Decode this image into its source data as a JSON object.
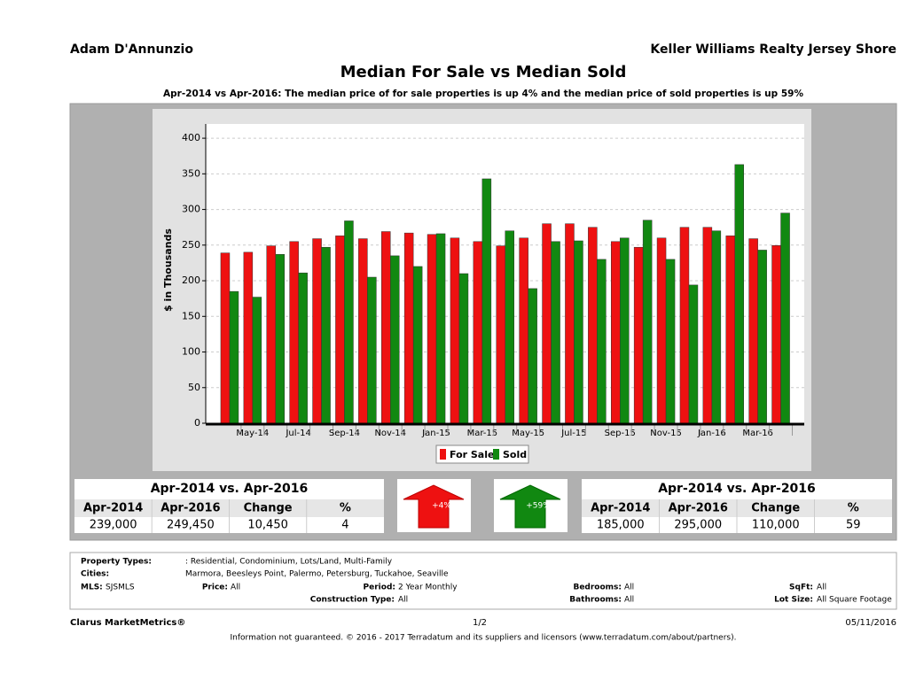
{
  "header": {
    "agent": "Adam D'Annunzio",
    "company": "Keller Williams Realty Jersey Shore"
  },
  "chart_data": {
    "type": "bar",
    "title": "Median For Sale vs Median Sold",
    "subtitle": "Apr-2014 vs Apr-2016: The median price of for sale properties is up 4% and the median price of sold properties is up 59%",
    "y_label": "$ in Thousands",
    "categories": [
      null,
      "May-14",
      null,
      "Jul-14",
      null,
      "Sep-14",
      null,
      "Nov-14",
      null,
      "Jan-15",
      null,
      "Mar-15",
      null,
      "May-15",
      null,
      "Jul-15",
      null,
      "Sep-15",
      null,
      "Nov-15",
      null,
      "Jan-16",
      null,
      "Mar-16",
      null
    ],
    "series": [
      {
        "name": "For Sale",
        "color": "#ee1111",
        "values": [
          239,
          240,
          249,
          255,
          259,
          263,
          259,
          269,
          267,
          265,
          260,
          255,
          249,
          260,
          280,
          280,
          275,
          255,
          247,
          260,
          275,
          275,
          263,
          259,
          249.45
        ]
      },
      {
        "name": "Sold",
        "color": "#118811",
        "values": [
          185,
          177,
          237,
          211,
          247,
          284,
          205,
          235,
          220,
          266,
          210,
          343,
          270,
          189,
          255,
          256,
          230,
          260,
          285,
          230,
          194,
          270,
          363,
          243,
          295
        ]
      }
    ],
    "ylim": [
      0,
      420
    ],
    "yticks": [
      0,
      50,
      100,
      150,
      200,
      250,
      300,
      350,
      400
    ],
    "grid": true
  },
  "stats": [
    {
      "title": "Apr-2014 vs. Apr-2016",
      "headers": [
        "Apr-2014",
        "Apr-2016",
        "Change",
        "%"
      ],
      "row": [
        "239,000",
        "249,450",
        "10,450",
        "4"
      ],
      "arrow": "+4%"
    },
    {
      "title": "Apr-2014 vs. Apr-2016",
      "headers": [
        "Apr-2014",
        "Apr-2016",
        "Change",
        "%"
      ],
      "row": [
        "185,000",
        "295,000",
        "110,000",
        "59"
      ],
      "arrow": "+59%"
    }
  ],
  "filters": [
    {
      "label": "Property Types:",
      "value": ": Residential, Condominium, Lots/Land, Multi-Family"
    },
    {
      "label": "Cities:",
      "value": "Marmora, Beesleys Point, Palermo, Petersburg, Tuckahoe, Seaville"
    },
    {
      "label": "MLS:",
      "value": "SJSMLS"
    },
    {
      "label": "Price:",
      "value": "All"
    },
    {
      "label": "Period:",
      "value": "2 Year Monthly"
    },
    {
      "label": "Bedrooms:",
      "value": "All"
    },
    {
      "label": "SqFt:",
      "value": "All"
    },
    {
      "label": "Construction Type:",
      "value": "All"
    },
    {
      "label": "Bathrooms:",
      "value": "All"
    },
    {
      "label": "Lot Size:",
      "value": "All Square Footage"
    }
  ],
  "footer": {
    "brand": "Clarus MarketMetrics®",
    "page": "1/2",
    "date": "05/11/2016",
    "disclaimer": "Information not guaranteed. © 2016 - 2017 Terradatum and its suppliers and licensors (www.terradatum.com/about/partners)."
  }
}
